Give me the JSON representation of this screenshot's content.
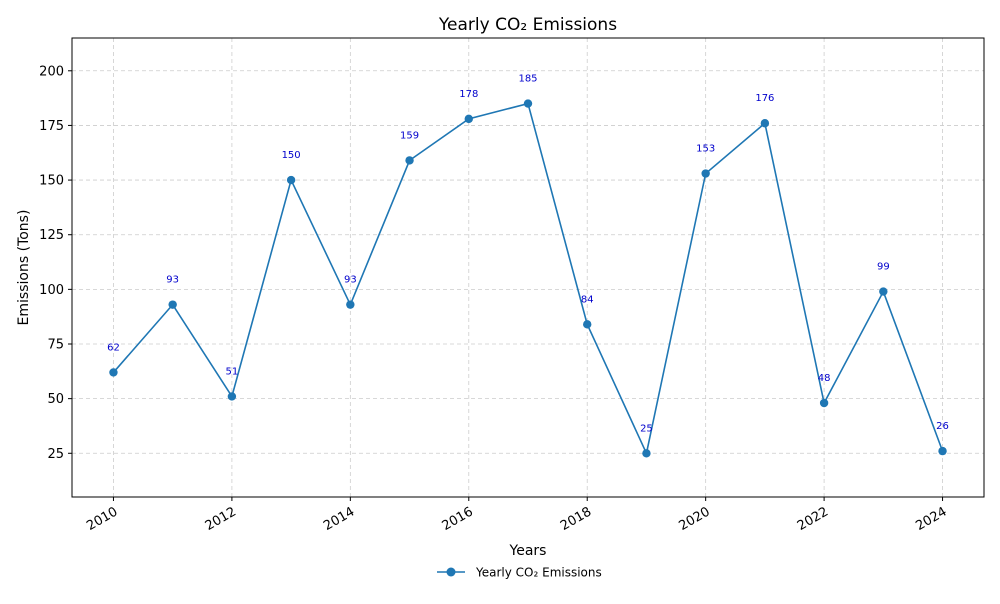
{
  "chart_data": {
    "type": "line",
    "title": "Yearly CO₂ Emissions",
    "xlabel": "Years",
    "ylabel": "Emissions (Tons)",
    "x": [
      2010,
      2011,
      2012,
      2013,
      2014,
      2015,
      2016,
      2017,
      2018,
      2019,
      2020,
      2021,
      2022,
      2023,
      2024
    ],
    "series": [
      {
        "name": "Yearly CO₂ Emissions",
        "values": [
          62,
          93,
          51,
          150,
          93,
          159,
          178,
          185,
          84,
          25,
          153,
          176,
          48,
          99,
          26
        ],
        "color": "#1f77b4"
      }
    ],
    "data_label_color": "#0000cc",
    "xlim": [
      2009.3,
      2024.7
    ],
    "ylim": [
      5,
      215
    ],
    "xticks": [
      2010,
      2012,
      2014,
      2016,
      2018,
      2020,
      2022,
      2024
    ],
    "yticks": [
      25,
      50,
      75,
      100,
      125,
      150,
      175,
      200
    ],
    "xtick_rotation": 30,
    "grid": true,
    "grid_style": "dashed",
    "legend_position": "bottom-center"
  }
}
